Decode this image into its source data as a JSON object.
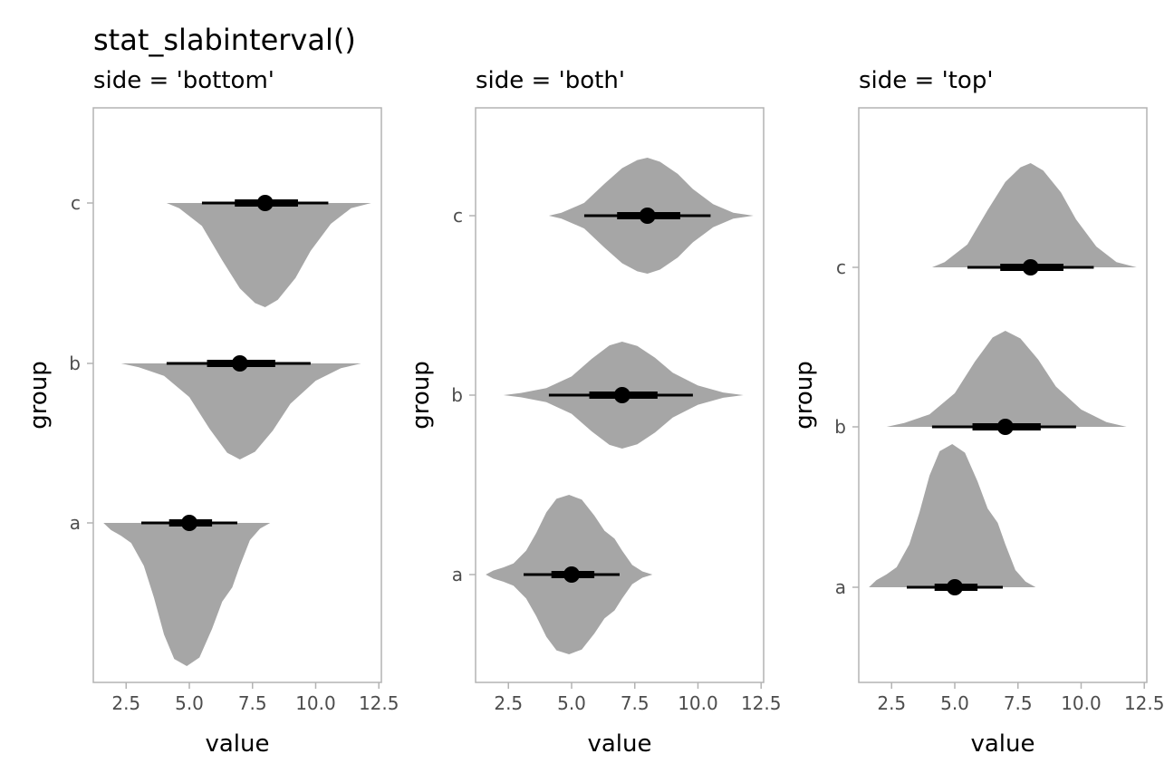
{
  "title": "stat_slabinterval()",
  "colors": {
    "slab": "#a6a6a6",
    "interval": "#000000",
    "panel_border": "#b3b3b3",
    "tick_text": "#4d4d4d"
  },
  "chart_data": [
    {
      "type": "slabinterval",
      "subtitle": "side = 'bottom'",
      "side": "bottom",
      "xlabel": "value",
      "ylabel": "group",
      "xlim": [
        1.2,
        12.6
      ],
      "xticks": [
        2.5,
        5.0,
        7.5,
        10.0,
        12.5
      ],
      "xtick_labels": [
        "2.5",
        "5.0",
        "7.5",
        "10.0",
        "12.5"
      ],
      "categories": [
        "a",
        "b",
        "c"
      ],
      "groups": [
        {
          "name": "a",
          "point": 5.0,
          "thick": [
            4.2,
            5.9
          ],
          "thin": [
            3.1,
            6.9
          ],
          "range": [
            1.6,
            8.2
          ]
        },
        {
          "name": "b",
          "point": 7.0,
          "thick": [
            5.7,
            8.4
          ],
          "thin": [
            4.1,
            9.8
          ],
          "range": [
            2.3,
            11.8
          ]
        },
        {
          "name": "c",
          "point": 8.0,
          "thick": [
            6.8,
            9.3
          ],
          "thin": [
            5.5,
            10.5
          ],
          "range": [
            4.1,
            12.2
          ]
        }
      ]
    },
    {
      "type": "slabinterval",
      "subtitle": "side = 'both'",
      "side": "both",
      "xlabel": "value",
      "ylabel": "group",
      "xlim": [
        1.2,
        12.6
      ],
      "xticks": [
        2.5,
        5.0,
        7.5,
        10.0,
        12.5
      ],
      "xtick_labels": [
        "2.5",
        "5.0",
        "7.5",
        "10.0",
        "12.5"
      ],
      "categories": [
        "a",
        "b",
        "c"
      ],
      "groups": [
        {
          "name": "a",
          "point": 5.0,
          "thick": [
            4.2,
            5.9
          ],
          "thin": [
            3.1,
            6.9
          ],
          "range": [
            1.6,
            8.2
          ]
        },
        {
          "name": "b",
          "point": 7.0,
          "thick": [
            5.7,
            8.4
          ],
          "thin": [
            4.1,
            9.8
          ],
          "range": [
            2.3,
            11.8
          ]
        },
        {
          "name": "c",
          "point": 8.0,
          "thick": [
            6.8,
            9.3
          ],
          "thin": [
            5.5,
            10.5
          ],
          "range": [
            4.1,
            12.2
          ]
        }
      ]
    },
    {
      "type": "slabinterval",
      "subtitle": "side = 'top'",
      "side": "top",
      "xlabel": "value",
      "ylabel": "group",
      "xlim": [
        1.2,
        12.6
      ],
      "xticks": [
        2.5,
        5.0,
        7.5,
        10.0,
        12.5
      ],
      "xtick_labels": [
        "2.5",
        "5.0",
        "7.5",
        "10.0",
        "12.5"
      ],
      "categories": [
        "a",
        "b",
        "c"
      ],
      "groups": [
        {
          "name": "a",
          "point": 5.0,
          "thick": [
            4.2,
            5.9
          ],
          "thin": [
            3.1,
            6.9
          ],
          "range": [
            1.6,
            8.2
          ]
        },
        {
          "name": "b",
          "point": 7.0,
          "thick": [
            5.7,
            8.4
          ],
          "thin": [
            4.1,
            9.8
          ],
          "range": [
            2.3,
            11.8
          ]
        },
        {
          "name": "c",
          "point": 8.0,
          "thick": [
            6.8,
            9.3
          ],
          "thin": [
            5.5,
            10.5
          ],
          "range": [
            4.1,
            12.2
          ]
        }
      ]
    }
  ]
}
